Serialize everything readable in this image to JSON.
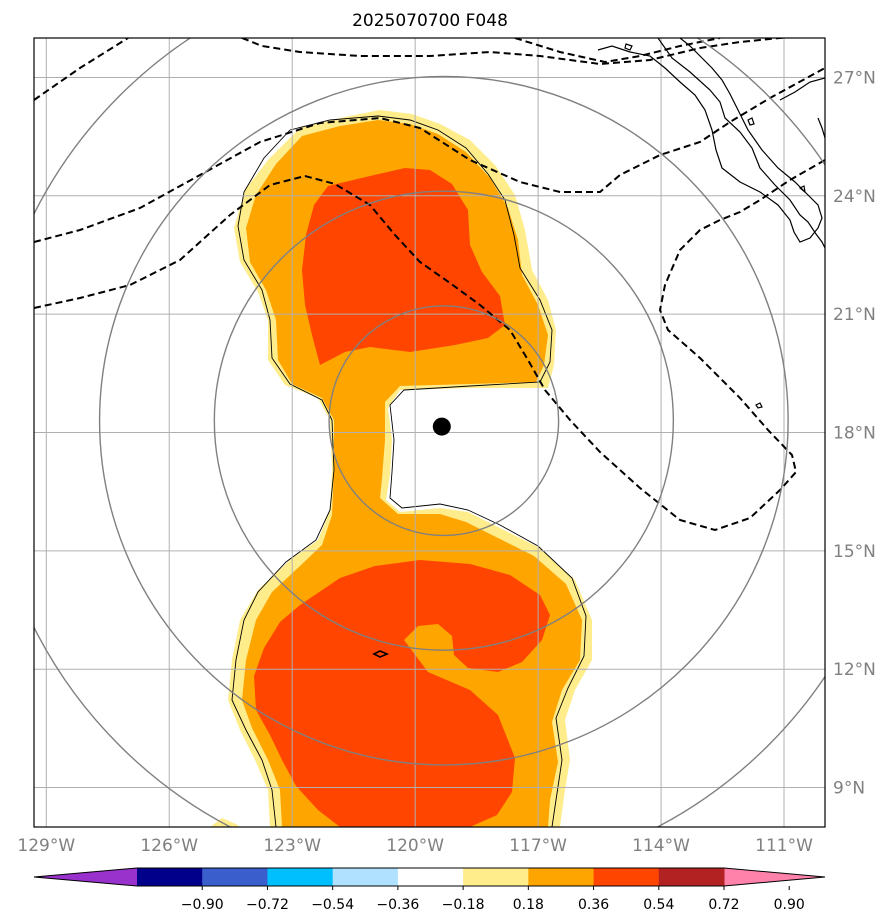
{
  "chart_data": {
    "type": "map",
    "title": "2025070700 F048",
    "projection": "lat-lon",
    "lon_range": [
      -129.3,
      -110.0
    ],
    "lat_range": [
      8.0,
      28.0
    ],
    "xticks": [
      {
        "value": -129,
        "label": "129°W"
      },
      {
        "value": -126,
        "label": "126°W"
      },
      {
        "value": -123,
        "label": "123°W"
      },
      {
        "value": -120,
        "label": "120°W"
      },
      {
        "value": -117,
        "label": "117°W"
      },
      {
        "value": -114,
        "label": "114°W"
      },
      {
        "value": -111,
        "label": "111°W"
      }
    ],
    "yticks": [
      {
        "value": 9,
        "label": "9°N"
      },
      {
        "value": 12,
        "label": "12°N"
      },
      {
        "value": 15,
        "label": "15°N"
      },
      {
        "value": 18,
        "label": "18°N"
      },
      {
        "value": 21,
        "label": "21°N"
      },
      {
        "value": 24,
        "label": "24°N"
      },
      {
        "value": 27,
        "label": "27°N"
      }
    ],
    "grid": true,
    "storm_center": {
      "lon": -119.35,
      "lat": 18.15
    },
    "range_rings_center": {
      "lon": -119.3,
      "lat": 18.3
    },
    "range_rings_deg": [
      2.8,
      5.6,
      8.4,
      11.2
    ],
    "colorbar": {
      "orientation": "horizontal",
      "extend": "both",
      "colors": [
        "#9932cc",
        "#00008b",
        "#3a5fcd",
        "#00bfff",
        "#b0e2ff",
        "#ffffff",
        "#ffec8b",
        "#ffa500",
        "#ff4500",
        "#b22222",
        "#ff82ab"
      ],
      "tick_values": [
        -0.9,
        -0.72,
        -0.54,
        -0.36,
        -0.18,
        0.18,
        0.36,
        0.54,
        0.72,
        0.9
      ],
      "tick_labels": [
        "−0.90",
        "−0.72",
        "−0.54",
        "−0.36",
        "−0.18",
        "0.18",
        "0.36",
        "0.54",
        "0.72",
        "0.90"
      ]
    },
    "filled_levels": [
      {
        "range": [
          0.18,
          0.36
        ],
        "color": "#ffec8b"
      },
      {
        "range": [
          0.36,
          0.54
        ],
        "color": "#ffa500"
      },
      {
        "range": [
          0.54,
          0.72
        ],
        "color": "#ff4500"
      }
    ]
  }
}
